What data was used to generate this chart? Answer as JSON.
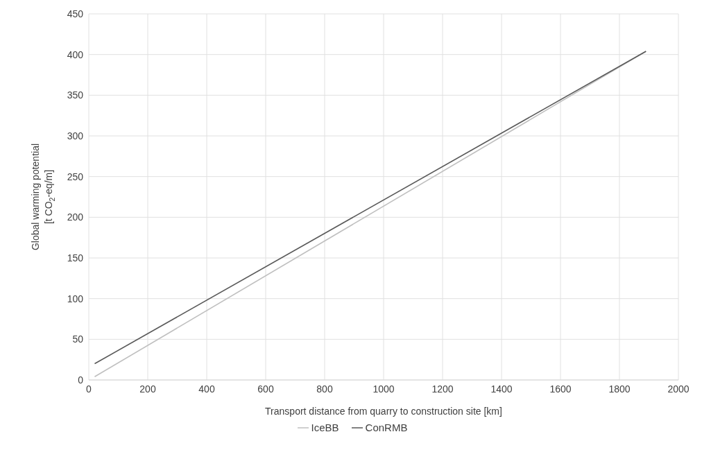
{
  "chart_data": {
    "type": "line",
    "xlabel": "Transport distance from quarry to construction site [km]",
    "ylabel": "Global warming potential\n[t CO$_{2}$-eq/m]",
    "series": [
      {
        "name": "IceBB",
        "color": "#bfbfbf",
        "values": [
          4,
          404
        ]
      },
      {
        "name": "ConRMB",
        "color": "#595959",
        "values": [
          20,
          404
        ]
      }
    ],
    "x": [
      20,
      1890
    ],
    "xlim": [
      0,
      2000
    ],
    "xticks": [
      0,
      200,
      400,
      600,
      800,
      1000,
      1200,
      1400,
      1600,
      1800,
      2000
    ],
    "ylim": [
      0,
      450
    ],
    "yticks": [
      0,
      50,
      100,
      150,
      200,
      250,
      300,
      350,
      400,
      450
    ],
    "grid": true,
    "legend": "bottom",
    "marker": "none",
    "line_style": "solid"
  }
}
